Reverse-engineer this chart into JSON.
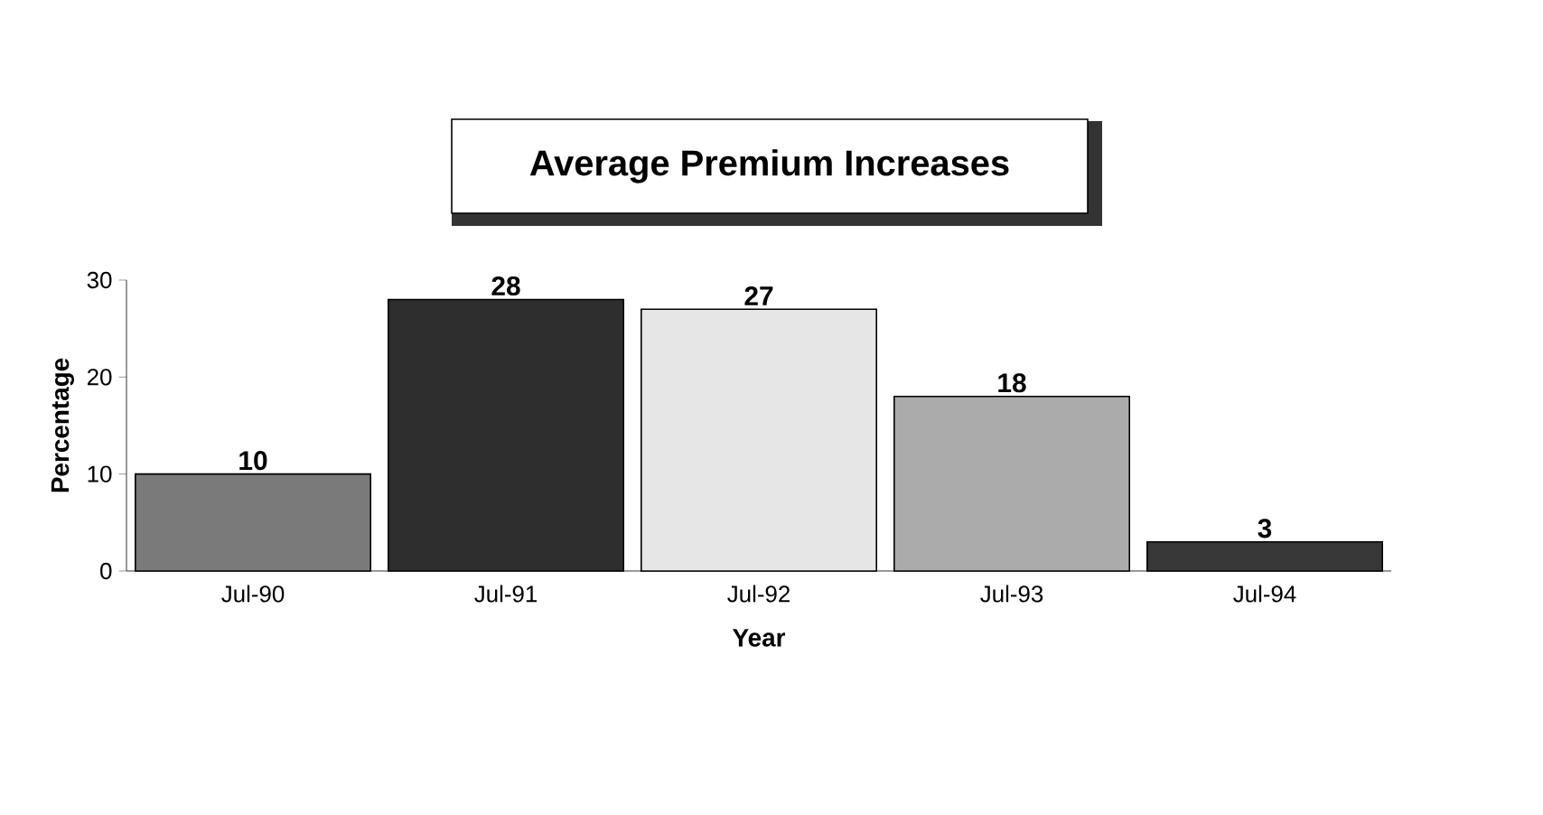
{
  "chart_data": {
    "type": "bar",
    "title": "Average Premium Increases",
    "xlabel": "Year",
    "ylabel": "Percentage",
    "categories": [
      "Jul-90",
      "Jul-91",
      "Jul-92",
      "Jul-93",
      "Jul-94"
    ],
    "values": [
      10,
      28,
      27,
      18,
      3
    ],
    "colors": [
      "#7a7a7a",
      "#2e2e2e",
      "#e6e6e6",
      "#ababab",
      "#383838"
    ],
    "ylim": [
      0,
      30
    ],
    "yticks": [
      0,
      10,
      20,
      30
    ],
    "data_labels": true
  }
}
